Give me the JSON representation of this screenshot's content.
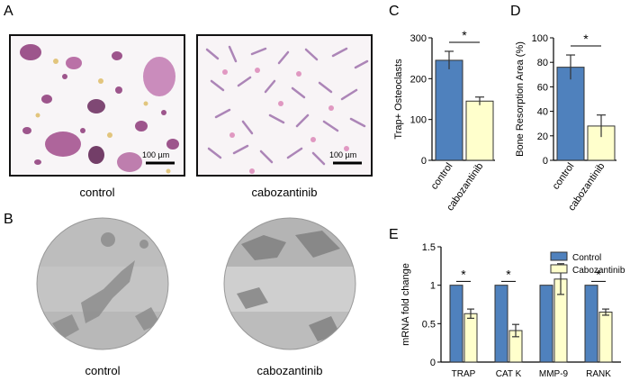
{
  "panels": {
    "a": "A",
    "b": "B",
    "c": "C",
    "d": "D",
    "e": "E"
  },
  "micrographs": {
    "control_caption": "control",
    "cabo_caption": "cabozantinib",
    "scale_bar_left": "100 µm",
    "scale_bar_right": "100 µm"
  },
  "resorption": {
    "control_caption": "control",
    "cabo_caption": "cabozantinib"
  },
  "colors": {
    "control": "#4f81bd",
    "cabozantinib": "#ffffcc",
    "error": "#333333"
  },
  "chart_data": [
    {
      "id": "C",
      "type": "bar",
      "categories": [
        "control",
        "cabozantinib"
      ],
      "values": [
        245,
        145
      ],
      "errors": [
        22,
        10
      ],
      "ylabel": "Trap+ Osteoclasts",
      "ylim": [
        0,
        300
      ],
      "yticks": [
        "0",
        "100",
        "200",
        "300"
      ],
      "significance": "*"
    },
    {
      "id": "D",
      "type": "bar",
      "categories": [
        "control",
        "cabozantinib"
      ],
      "values": [
        76,
        28
      ],
      "errors": [
        10,
        9
      ],
      "ylabel": "Bone Resorption Area (%)",
      "ylim": [
        0,
        100
      ],
      "yticks": [
        "0",
        "20",
        "40",
        "60",
        "80",
        "100"
      ],
      "significance": "*"
    },
    {
      "id": "E",
      "type": "bar",
      "categories": [
        "TRAP",
        "CAT K",
        "MMP-9",
        "RANK"
      ],
      "series": [
        {
          "name": "Control",
          "values": [
            1.0,
            1.0,
            1.0,
            1.0
          ],
          "errors": [
            0,
            0,
            0,
            0
          ]
        },
        {
          "name": "Cabozantinib",
          "values": [
            0.63,
            0.41,
            1.08,
            0.65
          ],
          "errors": [
            0.06,
            0.08,
            0.2,
            0.04
          ]
        }
      ],
      "ylabel": "mRNA fold change",
      "ylim": [
        0,
        1.5
      ],
      "yticks": [
        "0",
        "0.5",
        "1",
        "1.5"
      ],
      "significance": [
        "*",
        "*",
        "",
        "*"
      ],
      "legend_position": "top-right"
    }
  ]
}
